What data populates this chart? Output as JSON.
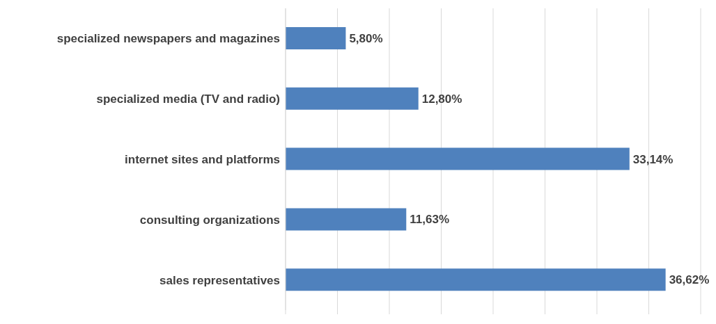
{
  "chart_data": {
    "type": "bar",
    "orientation": "horizontal",
    "categories": [
      "specialized newspapers and magazines",
      "specialized media (TV and radio)",
      "internet sites and platforms",
      "consulting organizations",
      "sales representatives"
    ],
    "series": [
      {
        "color": "#4f81bd",
        "values": [
          5.8,
          12.8,
          33.14,
          11.63,
          36.62
        ],
        "value_labels": [
          "5,80%",
          "12,80%",
          "33,14%",
          "11,63%",
          "36,62%"
        ]
      }
    ],
    "xlim": [
      0,
      40
    ],
    "xticks": [
      {
        "value": 0,
        "label": null
      },
      {
        "value": 5,
        "label": null
      },
      {
        "value": 10,
        "label": null
      },
      {
        "value": 15,
        "label": null
      },
      {
        "value": 20,
        "label": null
      },
      {
        "value": 25,
        "label": null
      },
      {
        "value": 30,
        "label": null
      },
      {
        "value": 35,
        "label": null
      },
      {
        "value": 40,
        "label": null
      }
    ],
    "grid": "x",
    "tick_labels": "y"
  }
}
